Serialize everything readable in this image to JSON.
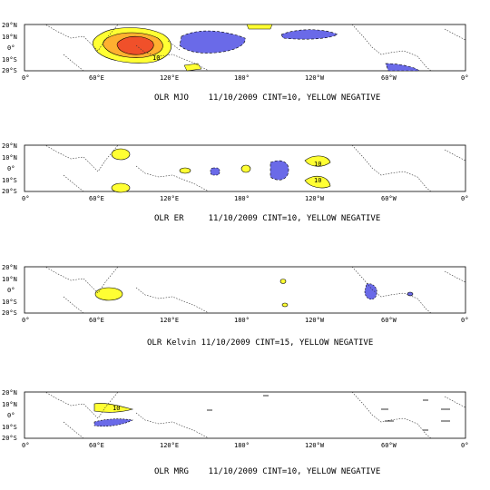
{
  "axes": {
    "lat_labels": [
      "20°N",
      "10°N",
      "0°",
      "10°S",
      "20°S"
    ],
    "lon_labels": [
      "0°",
      "60°E",
      "120°E",
      "180°",
      "120°W",
      "60°W",
      "0°"
    ]
  },
  "panels": [
    {
      "key": "mjo",
      "caption": "OLR MJO    11/10/2009 CINT=10, YELLOW NEGATIVE",
      "contour_labels": [
        "10"
      ]
    },
    {
      "key": "er",
      "caption": "OLR ER     11/10/2009 CINT=10, YELLOW NEGATIVE",
      "contour_labels": [
        "10",
        "10"
      ]
    },
    {
      "key": "kelvin",
      "caption": "OLR Kelvin 11/10/2009 CINT=15, YELLOW NEGATIVE",
      "contour_labels": []
    },
    {
      "key": "mrg",
      "caption": "OLR MRG    11/10/2009 CINT=10, YELLOW NEGATIVE",
      "contour_labels": [
        "10"
      ]
    }
  ],
  "colors": {
    "negative": "#ffff33",
    "negative_mid": "#ffb030",
    "negative_strong": "#f0502a",
    "positive": "#6a6ae8",
    "coast": "#333333"
  }
}
